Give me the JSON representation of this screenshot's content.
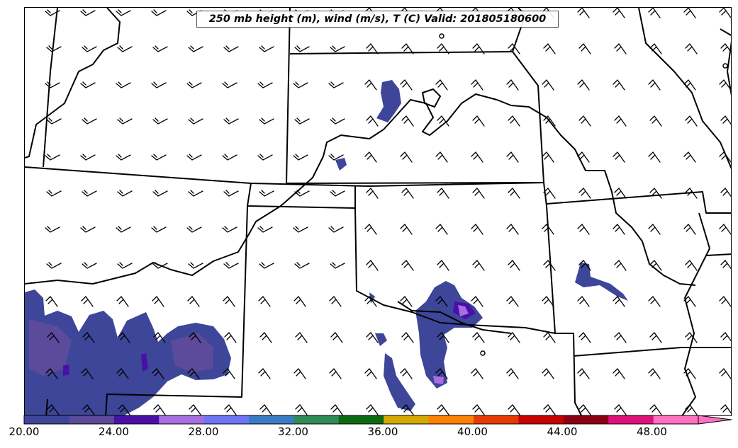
{
  "title": "250 mb height (m), wind (m/s), T (C) Valid: 201805180600",
  "colorbar": {
    "tick_labels": [
      "20.00",
      "24.00",
      "28.00",
      "32.00",
      "36.00",
      "40.00",
      "44.00",
      "48.00"
    ],
    "colors": [
      "#3d4698",
      "#5c4a9a",
      "#4a0fa8",
      "#a86ee0",
      "#6f75f5",
      "#3a7cc4",
      "#2e8b57",
      "#0a6a12",
      "#d4aa00",
      "#ff7f00",
      "#e83a00",
      "#c80000",
      "#8a0012",
      "#e0107a",
      "#ff70c0"
    ]
  }
}
